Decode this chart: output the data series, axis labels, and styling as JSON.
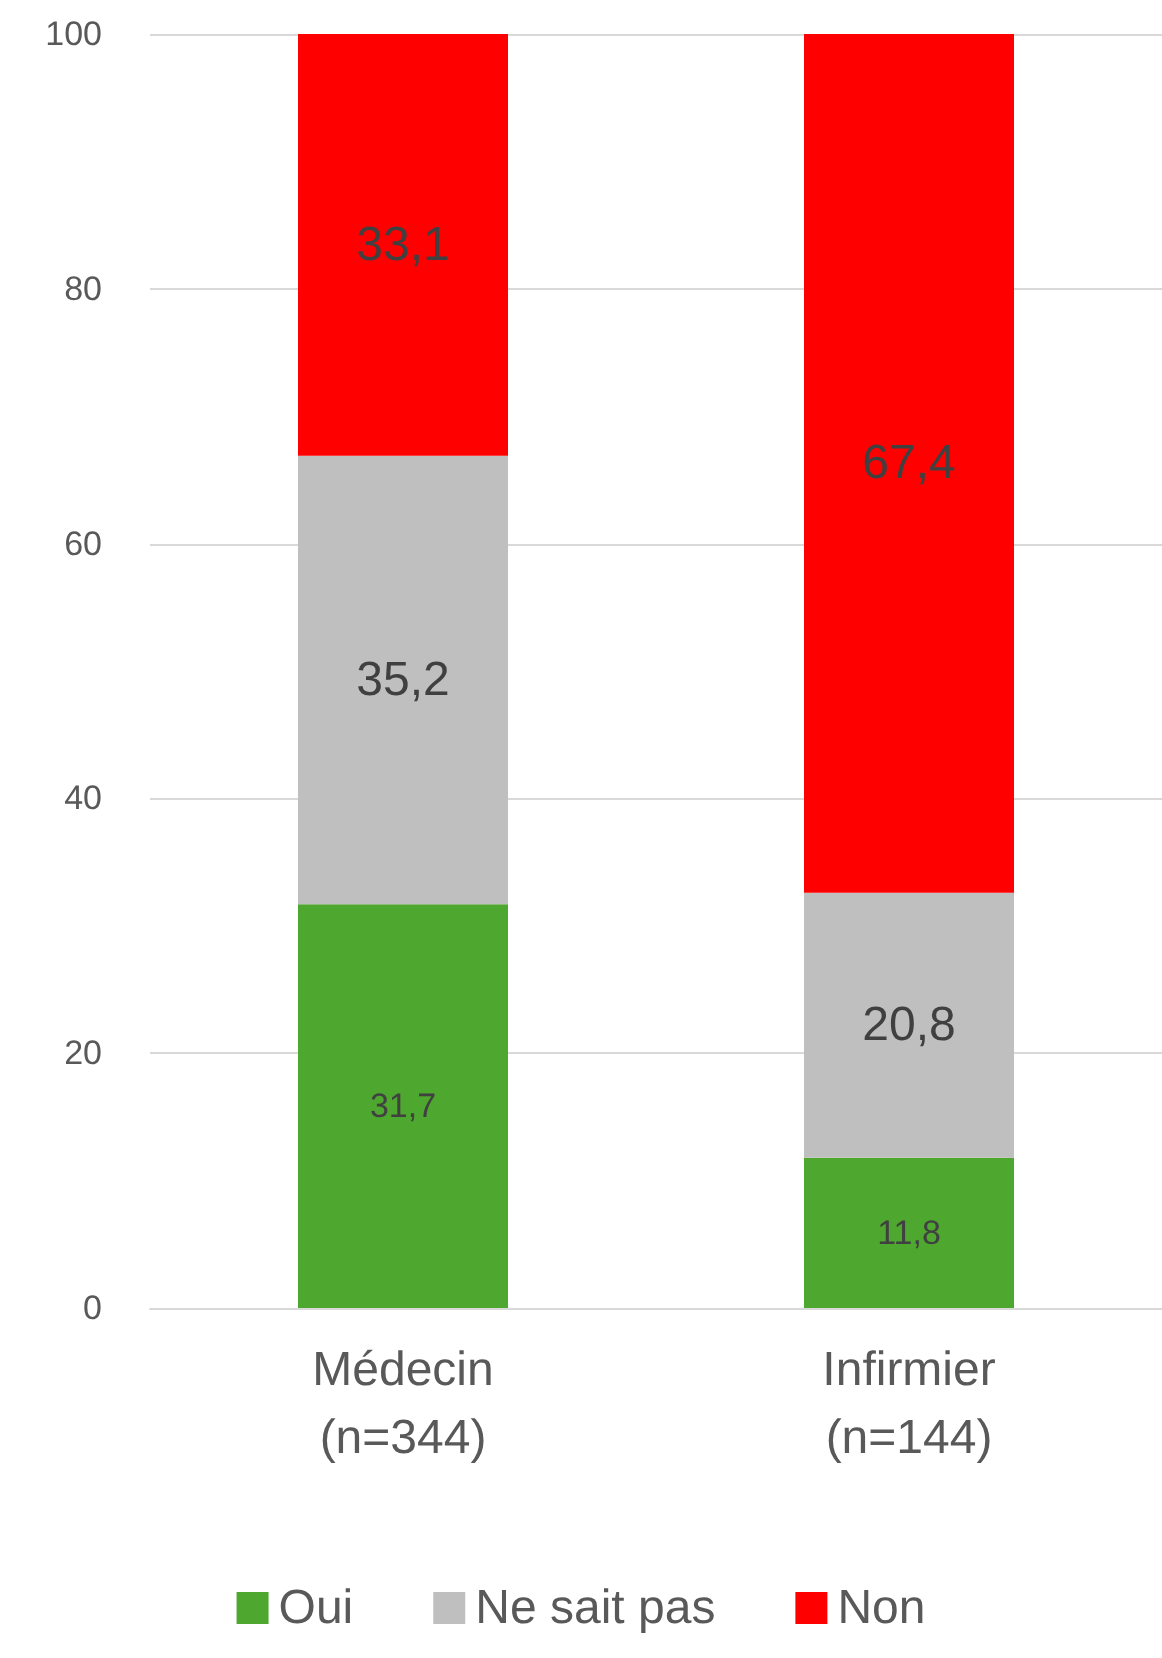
{
  "chart_data": {
    "type": "bar",
    "stacked": true,
    "categories": [
      "Médecin\n(n=344)",
      "Infirmier\n(n=144)"
    ],
    "series": [
      {
        "name": "Oui",
        "color": "#4ea72e",
        "values": [
          31.7,
          11.8
        ],
        "value_labels": [
          "31,7",
          "11,8"
        ]
      },
      {
        "name": "Ne sait pas",
        "color": "#bfbfbf",
        "values": [
          35.2,
          20.8
        ],
        "value_labels": [
          "35,2",
          "20,8"
        ]
      },
      {
        "name": "Non",
        "color": "#ff0000",
        "values": [
          33.1,
          67.4
        ],
        "value_labels": [
          "33,1",
          "67,4"
        ]
      }
    ],
    "ylim": [
      0,
      100
    ],
    "yticks": [
      0,
      20,
      40,
      60,
      80,
      100
    ],
    "grid": "y",
    "legend": "bottom"
  }
}
